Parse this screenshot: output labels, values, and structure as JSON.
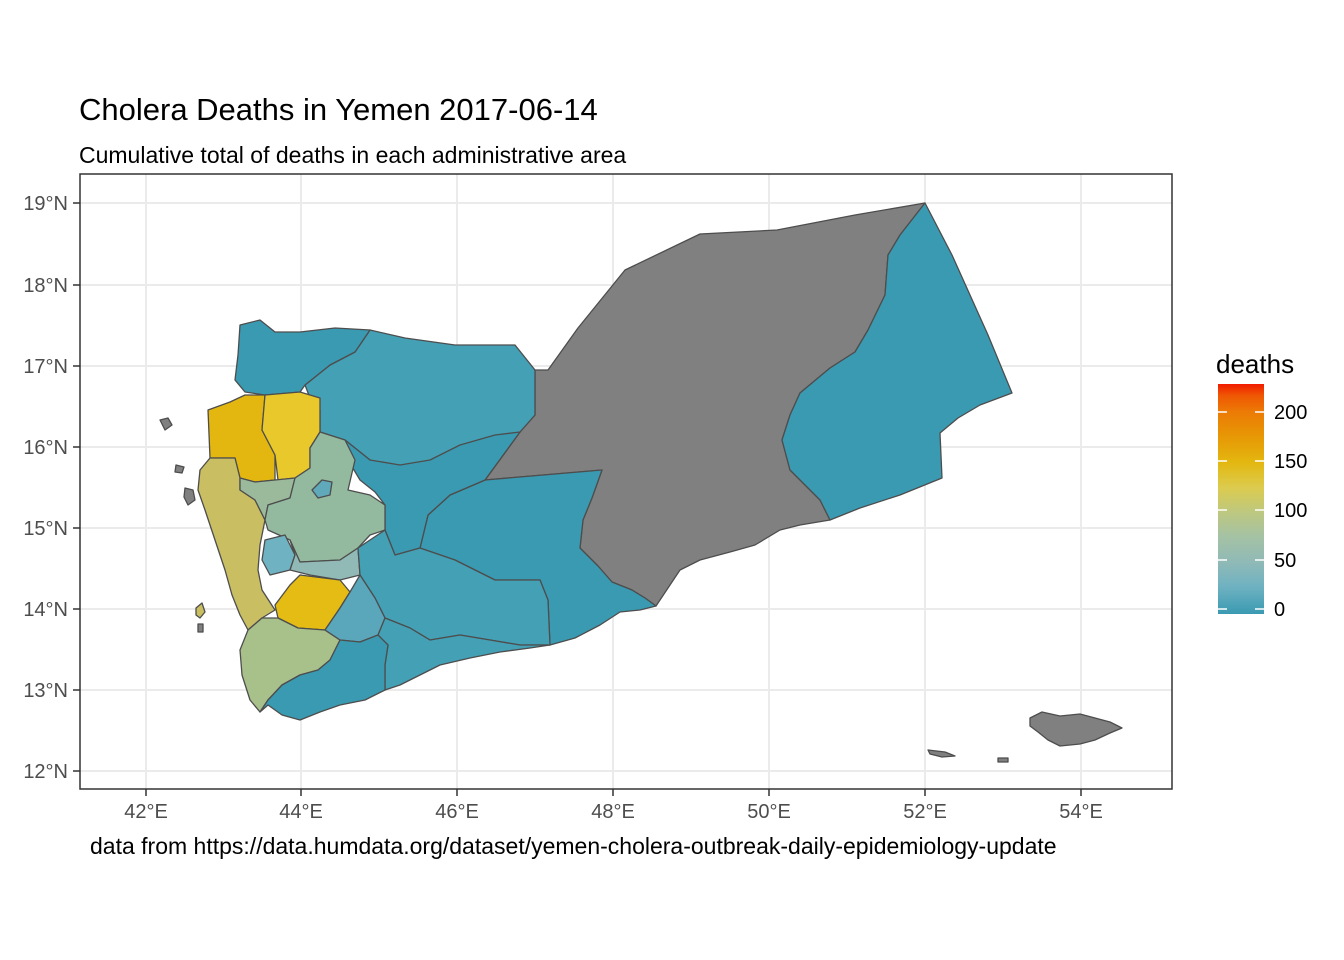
{
  "chart_data": {
    "type": "choropleth",
    "title": "Cholera Deaths in Yemen 2017-06-14",
    "subtitle": "Cumulative total of deaths in each administrative area",
    "caption": "data from https://data.humdata.org/dataset/yemen-cholera-outbreak-daily-epidemiology-update",
    "x_ticks": [
      "42°E",
      "44°E",
      "46°E",
      "48°E",
      "50°E",
      "52°E",
      "54°E"
    ],
    "y_ticks": [
      "12°N",
      "13°N",
      "14°N",
      "15°N",
      "16°N",
      "17°N",
      "18°N",
      "19°N"
    ],
    "xlim": [
      41.2,
      55.2
    ],
    "ylim": [
      11.82,
      19.2
    ],
    "grid": true,
    "legend": {
      "title": "deaths",
      "position": "right",
      "range": [
        0,
        225
      ],
      "ticks": [
        "0",
        "50",
        "100",
        "150",
        "200"
      ],
      "colors": [
        "#3A9AB2",
        "#6FB2C1",
        "#91BAB6",
        "#A5C2A3",
        "#BDC881",
        "#DCCB4E",
        "#E3B710",
        "#E79805",
        "#EC7A05",
        "#EF5703",
        "#F11B00"
      ]
    },
    "no_data_color": "#808080",
    "border_color": "#4d4d4d"
  }
}
